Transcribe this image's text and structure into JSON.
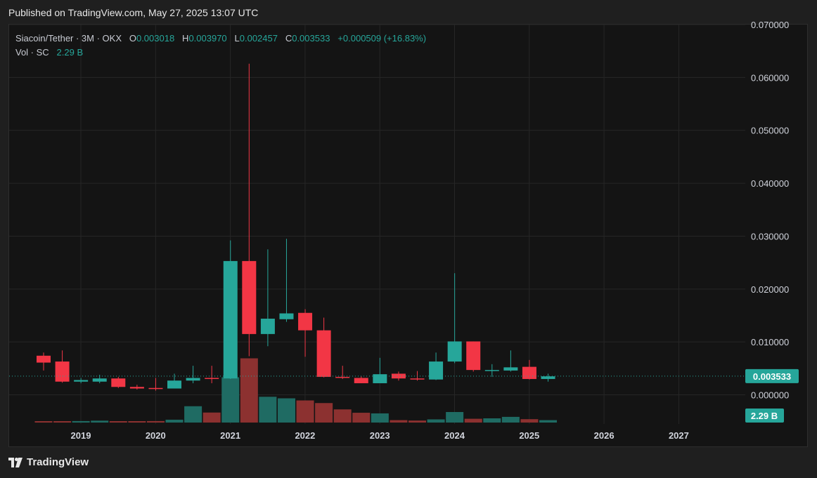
{
  "header": {
    "published": "Published on TradingView.com, May 27, 2025 13:07 UTC"
  },
  "legend": {
    "symbol": "Siacoin/Tether · 3M · OKX",
    "o_label": "O",
    "o_value": "0.003018",
    "h_label": "H",
    "h_value": "0.003970",
    "l_label": "L",
    "l_value": "0.002457",
    "c_label": "C",
    "c_value": "0.003533",
    "change": "+0.000509 (+16.83%)",
    "vol_label": "Vol · SC",
    "vol_value": "2.29 B"
  },
  "footer": {
    "brand": "TradingView"
  },
  "colors": {
    "up": "#26a69a",
    "down": "#f23645",
    "up_vol": "#1f6b63",
    "down_vol": "#8c3130",
    "grid": "#262626",
    "text": "#d1d4dc"
  },
  "chart_data": {
    "type": "candlestick",
    "interval": "3M",
    "y_ticks": [
      "0.070000",
      "0.060000",
      "0.050000",
      "0.040000",
      "0.030000",
      "0.020000",
      "0.010000",
      "0.000000"
    ],
    "ylim": [
      -0.0055,
      0.07
    ],
    "x_ticks": [
      "2019",
      "2020",
      "2021",
      "2022",
      "2023",
      "2024",
      "2025",
      "2026",
      "2027"
    ],
    "last_price_label": "0.003533",
    "last_volume_label": "2.29 B",
    "candles": [
      {
        "t": "2018-Q3",
        "o": 0.0074,
        "h": 0.008,
        "l": 0.0046,
        "c": 0.0061
      },
      {
        "t": "2018-Q4",
        "o": 0.0063,
        "h": 0.0084,
        "l": 0.0023,
        "c": 0.0025
      },
      {
        "t": "2019-Q1",
        "o": 0.0025,
        "h": 0.0032,
        "l": 0.0022,
        "c": 0.0028
      },
      {
        "t": "2019-Q2",
        "o": 0.0025,
        "h": 0.0038,
        "l": 0.0022,
        "c": 0.0031
      },
      {
        "t": "2019-Q3",
        "o": 0.0031,
        "h": 0.0034,
        "l": 0.0013,
        "c": 0.0015
      },
      {
        "t": "2019-Q4",
        "o": 0.0015,
        "h": 0.0019,
        "l": 0.001,
        "c": 0.0012
      },
      {
        "t": "2020-Q1",
        "o": 0.0013,
        "h": 0.0032,
        "l": 0.0008,
        "c": 0.0012
      },
      {
        "t": "2020-Q2",
        "o": 0.0012,
        "h": 0.004,
        "l": 0.0012,
        "c": 0.0027
      },
      {
        "t": "2020-Q3",
        "o": 0.0027,
        "h": 0.0055,
        "l": 0.0022,
        "c": 0.0032
      },
      {
        "t": "2020-Q4",
        "o": 0.0032,
        "h": 0.0055,
        "l": 0.0022,
        "c": 0.0031
      },
      {
        "t": "2021-Q1",
        "o": 0.0031,
        "h": 0.0292,
        "l": 0.003,
        "c": 0.0253
      },
      {
        "t": "2021-Q2",
        "o": 0.0253,
        "h": 0.0626,
        "l": 0.0073,
        "c": 0.0115
      },
      {
        "t": "2021-Q3",
        "o": 0.0115,
        "h": 0.0275,
        "l": 0.0092,
        "c": 0.0144
      },
      {
        "t": "2021-Q4",
        "o": 0.0143,
        "h": 0.0295,
        "l": 0.0138,
        "c": 0.0154
      },
      {
        "t": "2022-Q1",
        "o": 0.0155,
        "h": 0.0162,
        "l": 0.0072,
        "c": 0.0122
      },
      {
        "t": "2022-Q2",
        "o": 0.0122,
        "h": 0.0146,
        "l": 0.0033,
        "c": 0.0034
      },
      {
        "t": "2022-Q3",
        "o": 0.0034,
        "h": 0.0055,
        "l": 0.003,
        "c": 0.0033
      },
      {
        "t": "2022-Q4",
        "o": 0.0032,
        "h": 0.0035,
        "l": 0.0022,
        "c": 0.0022
      },
      {
        "t": "2023-Q1",
        "o": 0.0022,
        "h": 0.007,
        "l": 0.0022,
        "c": 0.0039
      },
      {
        "t": "2023-Q2",
        "o": 0.004,
        "h": 0.0044,
        "l": 0.0027,
        "c": 0.0031
      },
      {
        "t": "2023-Q3",
        "o": 0.0031,
        "h": 0.0045,
        "l": 0.0027,
        "c": 0.0029
      },
      {
        "t": "2023-Q4",
        "o": 0.0029,
        "h": 0.008,
        "l": 0.0028,
        "c": 0.0063
      },
      {
        "t": "2024-Q1",
        "o": 0.0063,
        "h": 0.023,
        "l": 0.006,
        "c": 0.0101
      },
      {
        "t": "2024-Q2",
        "o": 0.0101,
        "h": 0.0101,
        "l": 0.0044,
        "c": 0.0047
      },
      {
        "t": "2024-Q3",
        "o": 0.0047,
        "h": 0.0058,
        "l": 0.0034,
        "c": 0.0047
      },
      {
        "t": "2024-Q4",
        "o": 0.0046,
        "h": 0.0084,
        "l": 0.0044,
        "c": 0.0052
      },
      {
        "t": "2025-Q1",
        "o": 0.0053,
        "h": 0.0066,
        "l": 0.0029,
        "c": 0.003
      },
      {
        "t": "2025-Q2",
        "o": 0.003,
        "h": 0.004,
        "l": 0.0025,
        "c": 0.0035
      }
    ],
    "volume_rel": [
      0.8,
      1.0,
      1.4,
      1.8,
      1.1,
      1.2,
      1.4,
      2.7,
      15.5,
      9.5,
      43,
      61,
      24.5,
      23,
      21,
      18.5,
      12.5,
      9.3,
      8.7,
      2.3,
      1.9,
      3.0,
      10.0,
      3.6,
      4.0,
      5.4,
      3.2,
      2.3
    ]
  }
}
